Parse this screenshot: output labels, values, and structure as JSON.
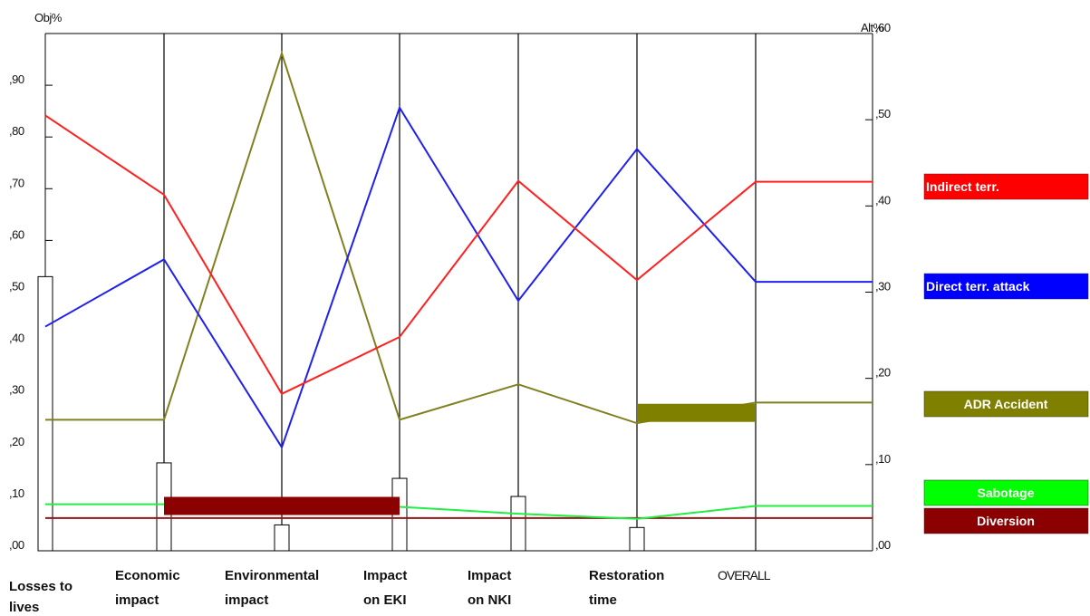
{
  "chart_data": {
    "type": "line",
    "left_axis_label": "Obj%",
    "right_axis_label": "Alt%",
    "left_axis_range": [
      0,
      1.0
    ],
    "right_axis_range": [
      0,
      0.6
    ],
    "left_ticks": [
      ",00",
      ",10",
      ",20",
      ",30",
      ",40",
      ",50",
      ",60",
      ",70",
      ",80",
      ",90"
    ],
    "right_ticks": [
      ",00",
      ",10",
      ",20",
      ",30",
      ",40",
      ",50",
      ",60"
    ],
    "categories": [
      {
        "line1": "Losses to",
        "line2": "lives",
        "bold": true
      },
      {
        "line1": "Economic",
        "line2": "impact",
        "bold": true
      },
      {
        "line1": "Environmental",
        "line2": "impact",
        "bold": true
      },
      {
        "line1": "Impact",
        "line2": "on EKI",
        "bold": true
      },
      {
        "line1": "Impact",
        "line2": "on NKI",
        "bold": true
      },
      {
        "line1": "Restoration",
        "line2": "time",
        "bold": true
      },
      {
        "line1": "OVERALL",
        "line2": "",
        "bold": false
      }
    ],
    "objective_weights": [
      0.53,
      0.17,
      0.05,
      0.14,
      0.105,
      0.045
    ],
    "series": [
      {
        "name": "Indirect terr.",
        "color": "#ff2020",
        "label_bg": "#ff0000",
        "label_color": "#ffffff",
        "values": [
          0.505,
          0.413,
          0.182,
          0.248,
          0.429,
          0.314,
          0.428
        ]
      },
      {
        "name": "Direct terr. attack",
        "color": "#2020ee",
        "label_bg": "#0000ff",
        "label_color": "#ffffff",
        "values": [
          0.26,
          0.338,
          0.12,
          0.514,
          0.29,
          0.466,
          0.312
        ]
      },
      {
        "name": "ADR Accident",
        "color": "#808020",
        "label_bg": "#808000",
        "label_color": "#ffffff",
        "values": [
          0.152,
          0.152,
          0.577,
          0.152,
          0.193,
          0.148,
          0.172
        ]
      },
      {
        "name": "Sabotage",
        "color": "#20ee40",
        "label_bg": "#00ff00",
        "label_color": "#ffffff",
        "values": [
          0.054,
          0.054,
          0.054,
          0.051,
          0.043,
          0.037,
          0.052
        ]
      },
      {
        "name": "Diversion",
        "color": "#8b1a1a",
        "label_bg": "#8b0000",
        "label_color": "#ffffff",
        "values": [
          0.038,
          0.038,
          0.038,
          0.038,
          0.038,
          0.038,
          0.038
        ]
      }
    ],
    "highlight_boxes": [
      {
        "series": "Diversion",
        "from": 1,
        "to": 3,
        "value": 0.052
      },
      {
        "series": "ADR Accident",
        "from": 5,
        "to": 6,
        "value": 0.16
      }
    ],
    "legend_placement": "right"
  }
}
